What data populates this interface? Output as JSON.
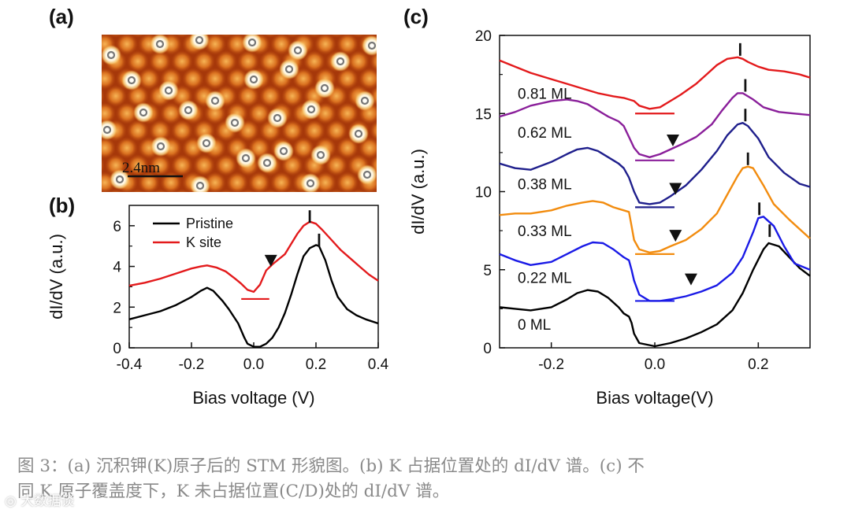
{
  "panel_a": {
    "label": "(a)",
    "scale_bar": "2.4nm",
    "image_description_name": "stm-topography"
  },
  "chart_data": [
    {
      "id": "b",
      "type": "line",
      "panel_label": "(b)",
      "xlabel": "Bias voltage (V)",
      "ylabel": "dI/dV (a.u.)",
      "xlim": [
        -0.4,
        0.4
      ],
      "ylim": [
        0,
        7
      ],
      "xticks": [
        -0.4,
        -0.2,
        0.0,
        0.2,
        0.4
      ],
      "xtick_labels": [
        "-0.4",
        "-0.2",
        "0.0",
        "0.2",
        "0.4"
      ],
      "yticks": [
        0,
        2,
        4,
        6
      ],
      "ytick_labels": [
        "0",
        "2",
        "4",
        "6"
      ],
      "legend": [
        "Pristine",
        "K site"
      ],
      "series": [
        {
          "name": "Pristine",
          "color": "#000000",
          "x": [
            -0.4,
            -0.35,
            -0.3,
            -0.25,
            -0.2,
            -0.17,
            -0.15,
            -0.13,
            -0.1,
            -0.08,
            -0.05,
            -0.03,
            -0.02,
            0.0,
            0.02,
            0.04,
            0.06,
            0.08,
            0.1,
            0.12,
            0.14,
            0.16,
            0.18,
            0.2,
            0.21,
            0.23,
            0.25,
            0.27,
            0.3,
            0.33,
            0.36,
            0.4
          ],
          "values": [
            1.4,
            1.6,
            1.8,
            2.1,
            2.5,
            2.8,
            2.95,
            2.8,
            2.3,
            1.9,
            1.2,
            0.5,
            0.2,
            0.05,
            0.05,
            0.2,
            0.5,
            1.0,
            1.7,
            2.6,
            3.6,
            4.5,
            4.9,
            5.05,
            5.0,
            4.3,
            3.3,
            2.5,
            1.9,
            1.6,
            1.4,
            1.2
          ],
          "marker_x": 0.21,
          "marker_y": 5.3
        },
        {
          "name": "K site",
          "color": "#e31a1c",
          "x": [
            -0.4,
            -0.35,
            -0.3,
            -0.25,
            -0.2,
            -0.17,
            -0.15,
            -0.12,
            -0.09,
            -0.06,
            -0.04,
            -0.02,
            0.0,
            0.02,
            0.04,
            0.06,
            0.08,
            0.1,
            0.12,
            0.14,
            0.16,
            0.18,
            0.2,
            0.22,
            0.25,
            0.28,
            0.31,
            0.34,
            0.37,
            0.4
          ],
          "values": [
            3.05,
            3.2,
            3.4,
            3.65,
            3.9,
            4.0,
            4.05,
            3.95,
            3.75,
            3.4,
            3.15,
            2.85,
            2.75,
            3.1,
            3.8,
            4.1,
            4.35,
            4.6,
            5.1,
            5.6,
            6.0,
            6.2,
            6.1,
            5.8,
            5.3,
            4.8,
            4.4,
            4.0,
            3.6,
            3.3
          ],
          "marker_x": 0.18,
          "marker_y": 6.45,
          "gap_line": {
            "x0": -0.04,
            "x1": 0.05,
            "y": 2.4
          },
          "triangle": {
            "x": 0.055,
            "y": 4.3
          }
        }
      ]
    },
    {
      "id": "c",
      "type": "line",
      "panel_label": "(c)",
      "xlabel": "Bias voltage(V)",
      "ylabel": "dI/dV (a.u.)",
      "xlim": [
        -0.3,
        0.3
      ],
      "ylim": [
        0,
        20
      ],
      "xticks": [
        -0.2,
        0.0,
        0.2
      ],
      "xtick_labels": [
        "-0.2",
        "0.0",
        "0.2"
      ],
      "yticks": [
        0,
        5,
        10,
        15,
        20
      ],
      "ytick_labels": [
        "0",
        "5",
        "10",
        "15",
        "20"
      ],
      "series": [
        {
          "name": "0 ML",
          "color": "#000000",
          "x": [
            -0.3,
            -0.27,
            -0.24,
            -0.2,
            -0.17,
            -0.15,
            -0.13,
            -0.11,
            -0.09,
            -0.07,
            -0.06,
            -0.05,
            -0.045,
            -0.04,
            -0.03,
            0.0,
            0.03,
            0.06,
            0.09,
            0.12,
            0.15,
            0.17,
            0.19,
            0.21,
            0.22,
            0.24,
            0.26,
            0.28,
            0.3
          ],
          "values": [
            2.6,
            2.5,
            2.4,
            2.6,
            3.1,
            3.5,
            3.7,
            3.6,
            3.2,
            2.6,
            2.2,
            2.0,
            1.6,
            0.9,
            0.3,
            0.1,
            0.3,
            0.6,
            1.0,
            1.5,
            2.4,
            3.5,
            5.0,
            6.3,
            6.7,
            6.5,
            5.8,
            5.1,
            4.6
          ],
          "marker_x": 0.222,
          "marker_y": 7.5,
          "label_y": 1.5
        },
        {
          "name": "0.22 ML",
          "color": "#1a1ae6",
          "x": [
            -0.3,
            -0.27,
            -0.24,
            -0.2,
            -0.17,
            -0.14,
            -0.12,
            -0.1,
            -0.08,
            -0.06,
            -0.05,
            -0.045,
            -0.04,
            -0.03,
            -0.01,
            0.01,
            0.03,
            0.06,
            0.09,
            0.12,
            0.15,
            0.17,
            0.19,
            0.2,
            0.21,
            0.23,
            0.25,
            0.27,
            0.3
          ],
          "values": [
            6.0,
            5.6,
            5.3,
            5.5,
            6.0,
            6.5,
            6.75,
            6.7,
            6.3,
            5.8,
            5.6,
            5.0,
            4.3,
            3.4,
            3.0,
            3.0,
            3.1,
            3.3,
            3.6,
            4.0,
            4.8,
            5.8,
            7.4,
            8.3,
            8.4,
            7.8,
            6.5,
            5.4,
            5.0
          ],
          "marker_x": 0.202,
          "marker_y": 8.9,
          "label_y": 4.5,
          "gap_line": {
            "x0": -0.038,
            "x1": 0.038,
            "y": 3.0
          },
          "triangle": {
            "x": 0.07,
            "y": 4.4
          }
        },
        {
          "name": "0.33 ML",
          "color": "#f28c0f",
          "x": [
            -0.3,
            -0.27,
            -0.24,
            -0.2,
            -0.17,
            -0.14,
            -0.12,
            -0.1,
            -0.08,
            -0.06,
            -0.05,
            -0.045,
            -0.04,
            -0.03,
            -0.01,
            0.01,
            0.03,
            0.06,
            0.09,
            0.12,
            0.14,
            0.16,
            0.17,
            0.18,
            0.19,
            0.21,
            0.23,
            0.26,
            0.3
          ],
          "values": [
            8.5,
            8.6,
            8.6,
            8.8,
            9.1,
            9.3,
            9.4,
            9.3,
            9.0,
            8.8,
            8.7,
            7.8,
            6.9,
            6.3,
            6.1,
            6.2,
            6.5,
            6.9,
            7.6,
            8.6,
            9.8,
            11.0,
            11.5,
            11.6,
            11.5,
            10.4,
            9.2,
            8.2,
            7.0
          ],
          "marker_x": 0.18,
          "marker_y": 12.1,
          "label_y": 7.5,
          "gap_line": {
            "x0": -0.038,
            "x1": 0.038,
            "y": 6.0
          },
          "triangle": {
            "x": 0.04,
            "y": 7.2
          }
        },
        {
          "name": "0.38 ML",
          "color": "#1f1f8c",
          "x": [
            -0.3,
            -0.27,
            -0.24,
            -0.2,
            -0.17,
            -0.15,
            -0.13,
            -0.11,
            -0.09,
            -0.07,
            -0.06,
            -0.05,
            -0.04,
            -0.03,
            -0.01,
            0.01,
            0.03,
            0.06,
            0.09,
            0.12,
            0.14,
            0.16,
            0.17,
            0.18,
            0.2,
            0.22,
            0.25,
            0.28,
            0.3
          ],
          "values": [
            11.8,
            11.5,
            11.4,
            11.9,
            12.4,
            12.7,
            12.8,
            12.6,
            12.2,
            11.8,
            11.5,
            10.9,
            10.0,
            9.3,
            9.2,
            9.3,
            9.7,
            10.4,
            11.4,
            12.6,
            13.6,
            14.3,
            14.4,
            14.2,
            13.4,
            12.2,
            11.2,
            10.5,
            10.3
          ],
          "marker_x": 0.175,
          "marker_y": 14.9,
          "label_y": 10.5,
          "gap_line": {
            "x0": -0.038,
            "x1": 0.038,
            "y": 9.0
          },
          "triangle": {
            "x": 0.04,
            "y": 10.2
          }
        },
        {
          "name": "0.62 ML",
          "color": "#8a1f9a",
          "x": [
            -0.3,
            -0.27,
            -0.24,
            -0.2,
            -0.17,
            -0.15,
            -0.13,
            -0.11,
            -0.09,
            -0.07,
            -0.06,
            -0.05,
            -0.04,
            -0.03,
            -0.01,
            0.01,
            0.03,
            0.05,
            0.08,
            0.11,
            0.13,
            0.15,
            0.16,
            0.17,
            0.19,
            0.21,
            0.24,
            0.27,
            0.3
          ],
          "values": [
            14.8,
            15.1,
            15.5,
            15.8,
            15.9,
            15.8,
            15.6,
            15.2,
            14.8,
            14.5,
            14.2,
            13.5,
            12.8,
            12.4,
            12.2,
            12.4,
            12.7,
            13.0,
            13.5,
            14.3,
            15.2,
            16.0,
            16.3,
            16.3,
            15.9,
            15.4,
            15.1,
            15.0,
            14.9
          ],
          "marker_x": 0.175,
          "marker_y": 16.8,
          "label_y": 13.8,
          "gap_line": {
            "x0": -0.038,
            "x1": 0.038,
            "y": 12.0
          },
          "triangle": {
            "x": 0.035,
            "y": 13.3
          }
        },
        {
          "name": "0.81 ML",
          "color": "#e31a1c",
          "x": [
            -0.3,
            -0.27,
            -0.24,
            -0.2,
            -0.17,
            -0.14,
            -0.11,
            -0.08,
            -0.06,
            -0.05,
            -0.04,
            -0.03,
            -0.01,
            0.01,
            0.03,
            0.05,
            0.08,
            0.1,
            0.12,
            0.14,
            0.16,
            0.17,
            0.18,
            0.2,
            0.22,
            0.25,
            0.28,
            0.3
          ],
          "values": [
            18.4,
            18.0,
            17.6,
            17.2,
            16.9,
            16.6,
            16.3,
            16.1,
            16.0,
            15.9,
            15.8,
            15.5,
            15.3,
            15.4,
            15.8,
            16.2,
            16.9,
            17.5,
            18.1,
            18.5,
            18.6,
            18.5,
            18.3,
            18.0,
            17.8,
            17.7,
            17.5,
            17.3
          ],
          "marker_x": 0.165,
          "marker_y": 19.1,
          "label_y": 16.3,
          "gap_line": {
            "x0": -0.038,
            "x1": 0.038,
            "y": 15.0
          }
        }
      ]
    }
  ],
  "caption": {
    "line1": "图 3：(a) 沉积钾(K)原子后的 STM 形貌图。(b) K 占据位置处的 dI/dV 谱。(c) 不",
    "line2": "同 K 原子覆盖度下，K 未占据位置(C/D)处的 dI/dV 谱。"
  },
  "watermark": "大数据谈"
}
